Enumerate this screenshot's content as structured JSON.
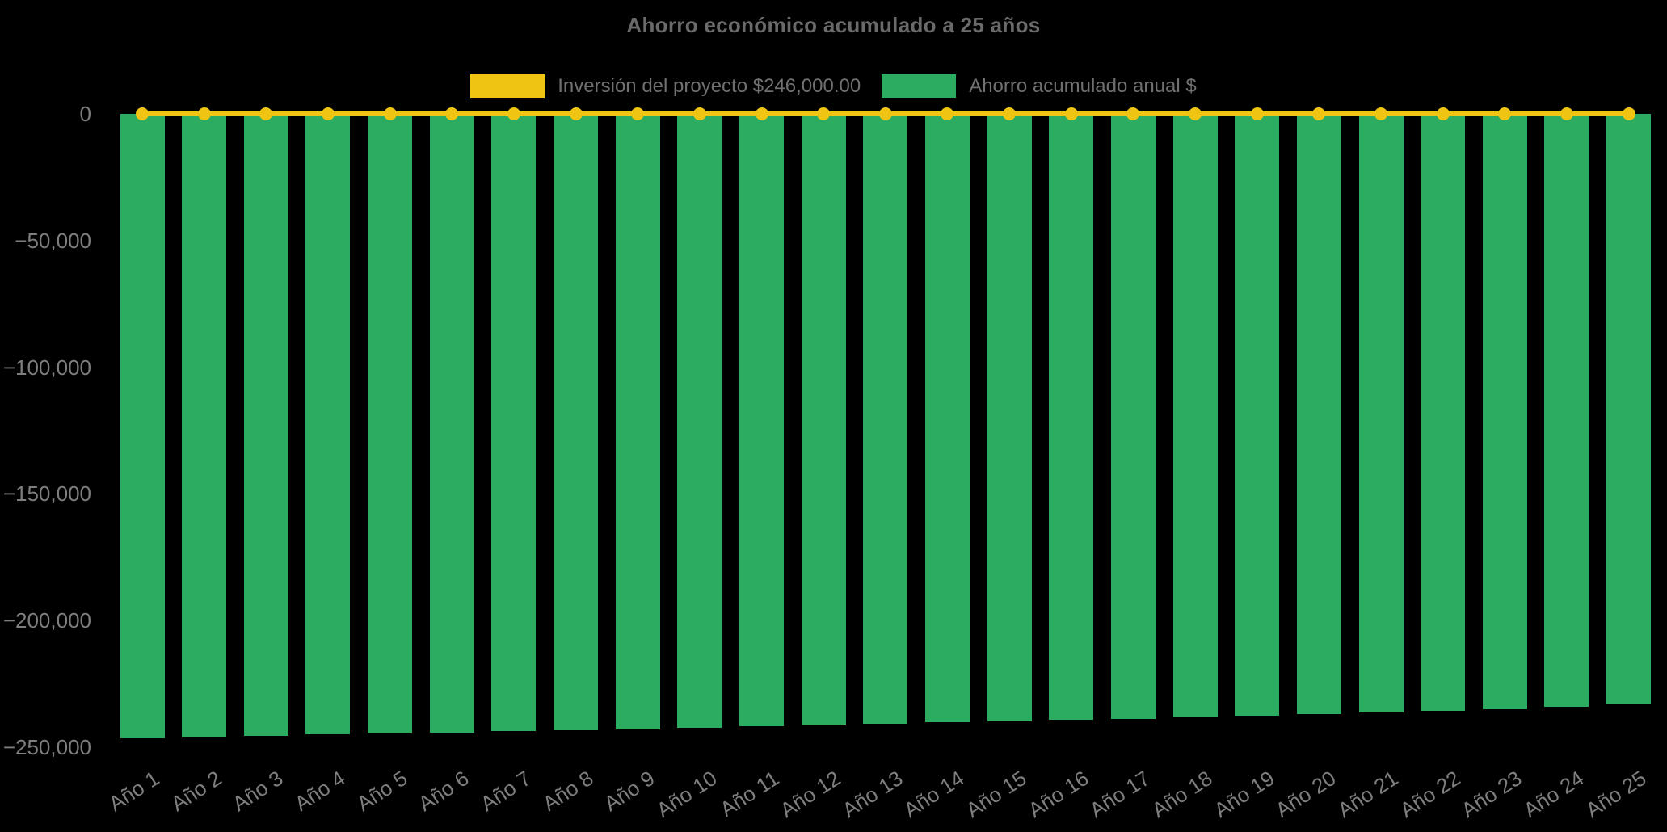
{
  "chart_data": {
    "type": "bar",
    "title": "Ahorro económico acumulado a 25 años",
    "background": "#000000",
    "grid": false,
    "legend_position": "top-center",
    "categories": [
      "Año 1",
      "Año 2",
      "Año 3",
      "Año 4",
      "Año 5",
      "Año 6",
      "Año 7",
      "Año 8",
      "Año 9",
      "Año 10",
      "Año 11",
      "Año 12",
      "Año 13",
      "Año 14",
      "Año 15",
      "Año 16",
      "Año 17",
      "Año 18",
      "Año 19",
      "Año 20",
      "Año 21",
      "Año 22",
      "Año 23",
      "Año 24",
      "Año 25"
    ],
    "series": [
      {
        "name": "Inversión del proyecto $246,000.00",
        "type": "line",
        "color": "#F0C413",
        "marker": "circle",
        "values": [
          0,
          0,
          0,
          0,
          0,
          0,
          0,
          0,
          0,
          0,
          0,
          0,
          0,
          0,
          0,
          0,
          0,
          0,
          0,
          0,
          0,
          0,
          0,
          0,
          0
        ]
      },
      {
        "name": "Ahorro acumulado anual $",
        "type": "bar",
        "color": "#2BAC61",
        "values": [
          -246400,
          -246200,
          -245500,
          -245000,
          -244700,
          -244200,
          -243700,
          -243300,
          -242900,
          -242300,
          -241800,
          -241300,
          -240800,
          -240200,
          -239700,
          -239200,
          -238700,
          -238200,
          -237600,
          -236900,
          -236300,
          -235700,
          -235000,
          -234100,
          -233100
        ]
      }
    ],
    "investment_value_label": "$246,000.00",
    "ylim": [
      -250000,
      0
    ],
    "yticks": {
      "values": [
        0,
        -50000,
        -100000,
        -150000,
        -200000,
        -250000
      ],
      "labels": [
        "0",
        "−50,000",
        "−100,000",
        "−150,000",
        "−200,000",
        "−250,000"
      ]
    },
    "text_colors": {
      "title": "#6a6a6a",
      "legend": "#707070",
      "axis_labels": "#7e7e7e"
    }
  }
}
